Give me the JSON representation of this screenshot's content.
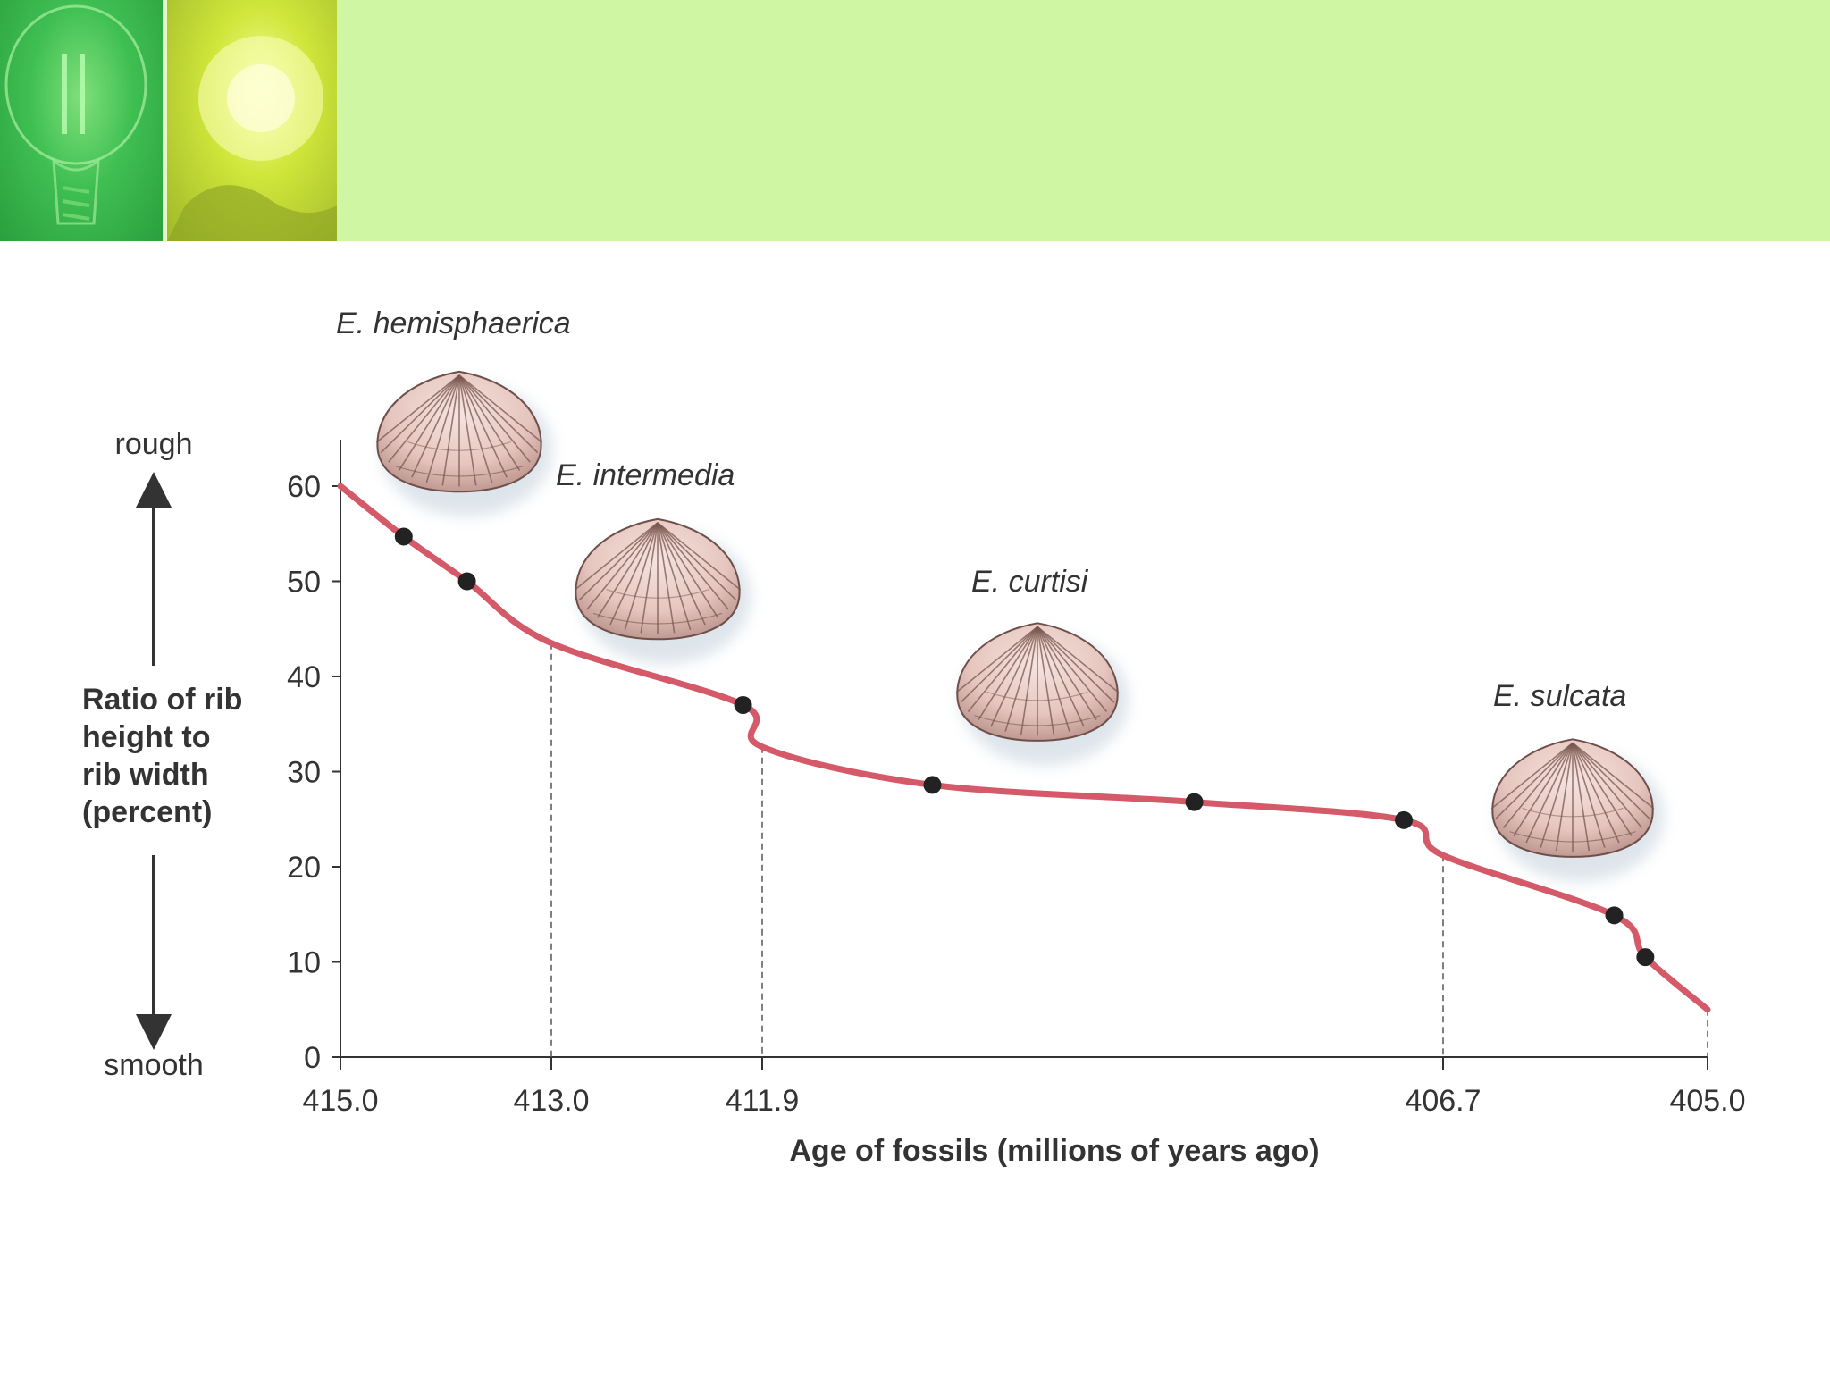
{
  "chart_data": {
    "type": "line",
    "xlabel": "Age of fossils (millions of years ago)",
    "ylabel": [
      "Ratio of rib",
      "height to",
      "rib width",
      "(percent)"
    ],
    "y_top_label": "rough",
    "y_bottom_label": "smooth",
    "x_ticks": [
      "415.0",
      "413.0",
      "411.9",
      "406.7",
      "405.0"
    ],
    "x_tick_values": [
      415.0,
      413.0,
      411.9,
      406.7,
      405.0
    ],
    "y_ticks": [
      0,
      10,
      20,
      30,
      40,
      50,
      60
    ],
    "ylim": [
      0,
      60
    ],
    "xlim": [
      415.0,
      405.0
    ],
    "series_color": "#d45a6a",
    "curve": [
      {
        "x": 415.0,
        "y": 60
      },
      {
        "x": 414.4,
        "y": 54.7
      },
      {
        "x": 413.8,
        "y": 50
      },
      {
        "x": 413.0,
        "y": 43.5
      },
      {
        "x": 412.0,
        "y": 37
      },
      {
        "x": 411.9,
        "y": 32.6
      },
      {
        "x": 410.6,
        "y": 28.6
      },
      {
        "x": 408.6,
        "y": 26.8
      },
      {
        "x": 407.0,
        "y": 24.9
      },
      {
        "x": 406.7,
        "y": 21.2
      },
      {
        "x": 405.6,
        "y": 14.9
      },
      {
        "x": 405.4,
        "y": 10.5
      },
      {
        "x": 405.0,
        "y": 5
      }
    ],
    "points": [
      {
        "x": 414.4,
        "y": 54.7
      },
      {
        "x": 413.8,
        "y": 50
      },
      {
        "x": 412.0,
        "y": 37
      },
      {
        "x": 410.6,
        "y": 28.6
      },
      {
        "x": 408.6,
        "y": 26.8
      },
      {
        "x": 407.0,
        "y": 24.9
      },
      {
        "x": 405.6,
        "y": 14.9
      },
      {
        "x": 405.4,
        "y": 10.5
      }
    ],
    "dashed_dividers_x": [
      413.0,
      411.9,
      406.7,
      405.0
    ],
    "species": [
      {
        "name": "E. hemisphaerica"
      },
      {
        "name": "E. intermedia"
      },
      {
        "name": "E. curtisi"
      },
      {
        "name": "E. sulcata"
      }
    ]
  }
}
